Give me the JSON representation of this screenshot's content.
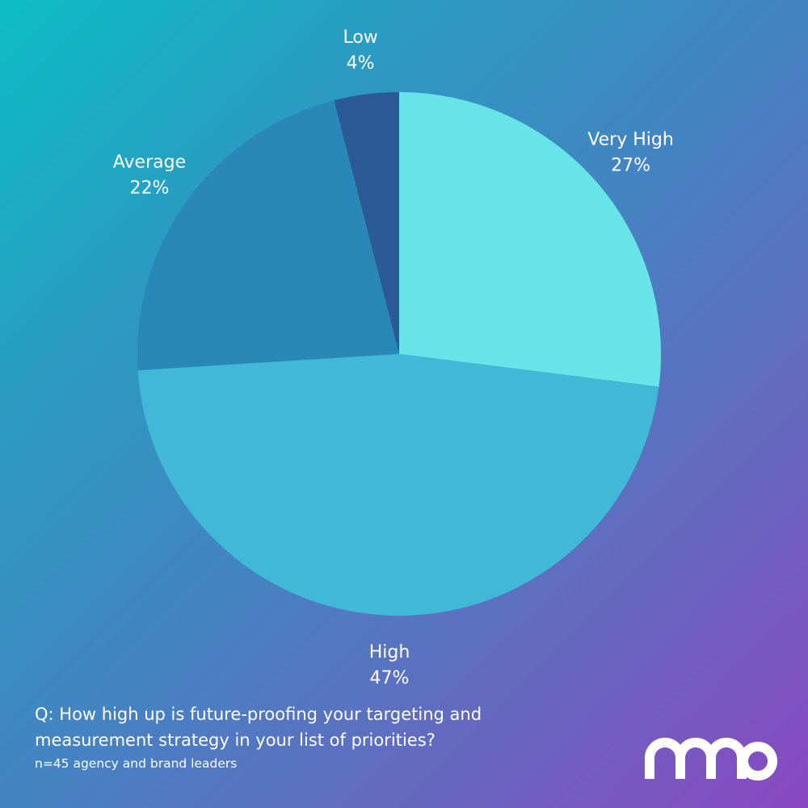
{
  "chart_data": {
    "type": "pie",
    "start_angle_deg": 0,
    "direction": "clockwise",
    "slices": [
      {
        "label": "Very High",
        "value": 27,
        "value_label": "27%",
        "color": "#68e4e8"
      },
      {
        "label": "High",
        "value": 47,
        "value_label": "47%",
        "color": "#40b8d6"
      },
      {
        "label": "Average",
        "value": 22,
        "value_label": "22%",
        "color": "#2a88b8"
      },
      {
        "label": "Low",
        "value": 4,
        "value_label": "4%",
        "color": "#2c5a96"
      }
    ]
  },
  "footer": {
    "question_line1": "Q: How high up is future-proofing your targeting and",
    "question_line2": "measurement strategy in your list of priorities?",
    "sample": "n=45 agency and brand leaders"
  },
  "brand": {
    "logo_icon": "nano-logo",
    "logo_color": "#ffffff"
  }
}
